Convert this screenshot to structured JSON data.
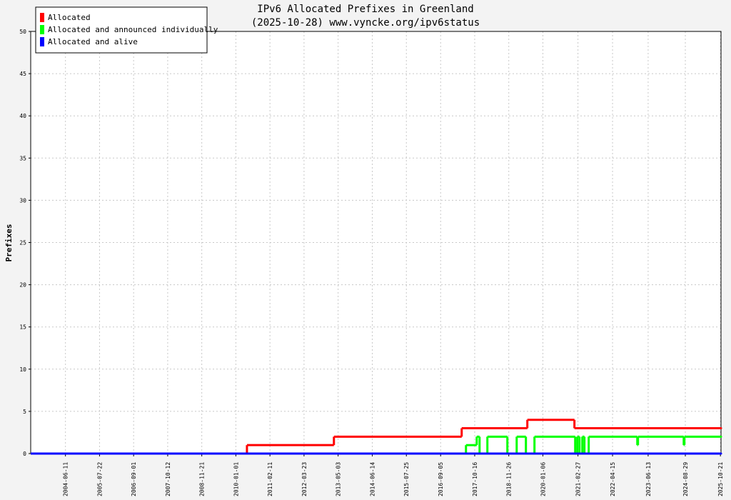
{
  "chart_data": {
    "type": "step",
    "title": "IPv6 Allocated Prefixes in Greenland",
    "subtitle": "(2025-10-28) www.vyncke.org/ipv6status",
    "y_label": "Prefixes",
    "xlim": [
      "2003-04-24",
      "2025-10-28"
    ],
    "xticks": [
      "2004-06-11",
      "2005-07-22",
      "2006-09-01",
      "2007-10-12",
      "2008-11-21",
      "2010-01-01",
      "2011-02-11",
      "2012-03-23",
      "2013-05-03",
      "2014-06-14",
      "2015-07-25",
      "2016-09-05",
      "2017-10-16",
      "2018-11-26",
      "2020-01-06",
      "2021-02-27",
      "2022-04-15",
      "2023-06-13",
      "2024-08-29",
      "2025-10-21"
    ],
    "ylim": [
      0,
      50
    ],
    "yticks": [
      0,
      5,
      10,
      15,
      20,
      25,
      30,
      35,
      40,
      45,
      50
    ],
    "grid": true,
    "legend": "top-left",
    "series": [
      {
        "name": "Allocated",
        "color": "#ff0000",
        "x": [
          "2003-04-24",
          "2010-05-13",
          "2013-03-14",
          "2017-05-14",
          "2019-07-05",
          "2021-01-16",
          "2025-10-28"
        ],
        "values": [
          0,
          1,
          2,
          3,
          4,
          3,
          3
        ]
      },
      {
        "name": "Allocated and announced individually",
        "color": "#00ff00",
        "x": [
          "2003-04-24",
          "2017-07-04",
          "2017-11-09",
          "2017-12-13",
          "2018-03-16",
          "2018-11-09",
          "2019-02-28",
          "2019-06-18",
          "2019-09-28",
          "2021-01-25",
          "2021-02-19",
          "2021-03-17",
          "2021-04-20",
          "2021-05-15",
          "2021-07-05",
          "2023-02-04",
          "2023-02-12",
          "2024-08-10",
          "2024-08-18",
          "2025-10-28"
        ],
        "values": [
          0,
          1,
          2,
          0,
          2,
          0,
          2,
          0,
          2,
          0,
          2,
          0,
          2,
          0,
          2,
          1,
          2,
          1,
          2,
          2
        ]
      },
      {
        "name": "Allocated and alive",
        "color": "#0000ff",
        "x": [
          "2003-04-24",
          "2025-10-28"
        ],
        "values": [
          0,
          0
        ]
      }
    ]
  }
}
